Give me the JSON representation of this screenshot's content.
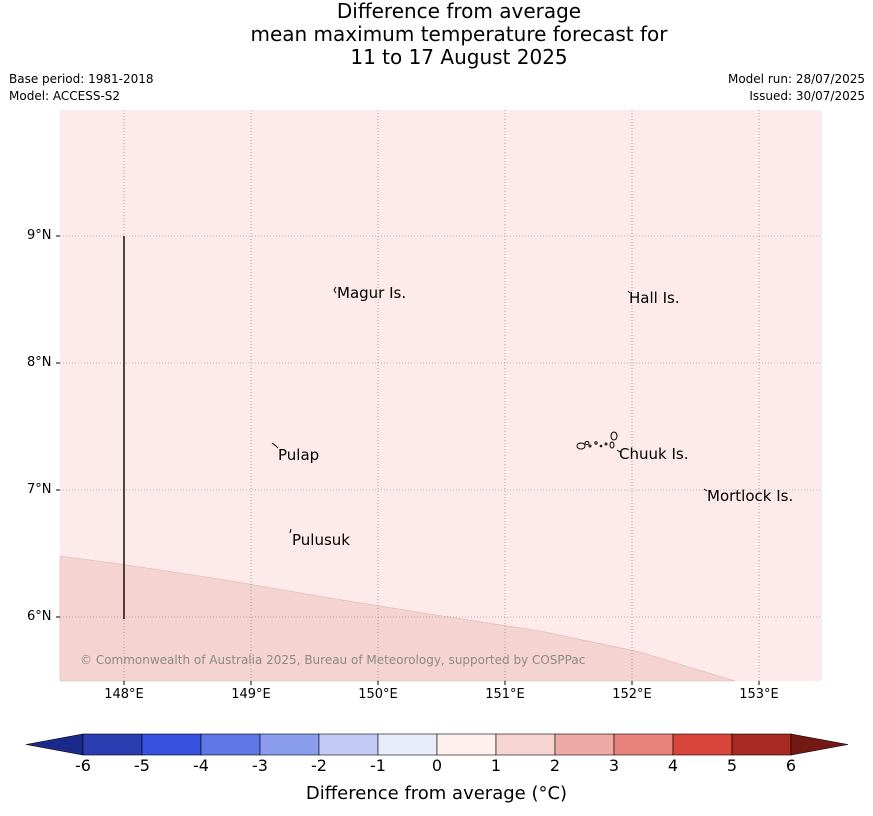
{
  "title": {
    "line1": "Difference from average",
    "line2": "mean maximum temperature forecast for",
    "line3": "11 to 17 August 2025"
  },
  "meta": {
    "base_period": "Base period: 1981-2018",
    "model": "Model: ACCESS-S2",
    "model_run": "Model run: 28/07/2025",
    "issued": "Issued: 30/07/2025"
  },
  "map": {
    "lat_labels": [
      "9°N",
      "8°N",
      "7°N",
      "6°N"
    ],
    "lon_labels": [
      "148°E",
      "149°E",
      "150°E",
      "151°E",
      "152°E",
      "153°E"
    ],
    "places": [
      "Magur Is.",
      "Hall Is.",
      "Pulap",
      "Chuuk Is.",
      "Mortlock Is.",
      "Pulusuk"
    ],
    "copyright": "© Commonwealth of Australia 2025, Bureau of Meteorology, supported by COSPPac",
    "colors": {
      "band_0_1": "#fcebea",
      "band_1_2": "#f5d3d1",
      "grid": "#7a7a7a"
    }
  },
  "colorbar": {
    "ticks": [
      "-6",
      "-5",
      "-4",
      "-3",
      "-2",
      "-1",
      "0",
      "1",
      "2",
      "3",
      "4",
      "5",
      "6"
    ],
    "colors": [
      "#1b2a8a",
      "#2b3db0",
      "#3651e0",
      "#5e76e6",
      "#8a9ced",
      "#c2cbf4",
      "#e9ecfb",
      "#fdefee",
      "#f6d4d1",
      "#eeaba6",
      "#e8827c",
      "#d9453b",
      "#a82a22",
      "#731813"
    ],
    "label": "Difference from average ($^\\circ$C)",
    "label_text": "Difference from average (°C)"
  }
}
